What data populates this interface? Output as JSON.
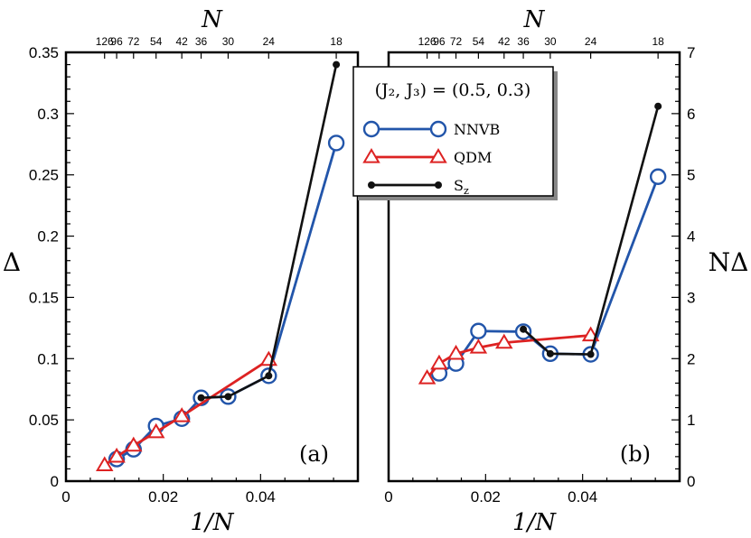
{
  "chart_data": [
    {
      "type": "line",
      "panel_label": "(a)",
      "xlabel": "1/N",
      "ylabel": "Δ",
      "top_xlabel": "N",
      "xlim": [
        0,
        0.06
      ],
      "ylim": [
        0,
        0.35
      ],
      "x_ticks": [
        0,
        0.02,
        0.04
      ],
      "x_tick_labels": [
        "0",
        "0.02",
        "0.04"
      ],
      "y_ticks": [
        0,
        0.05,
        0.1,
        0.15,
        0.2,
        0.25,
        0.3,
        0.35
      ],
      "y_tick_labels": [
        "0",
        "0.05",
        "0.1",
        "0.15",
        "0.2",
        "0.25",
        "0.3",
        "0.35"
      ],
      "top_ticks": [
        126,
        96,
        72,
        54,
        42,
        36,
        30,
        24,
        18
      ],
      "top_tick_labels": [
        "126",
        "96",
        "72",
        "54",
        "42",
        "36",
        "30",
        "24",
        "18"
      ],
      "series": [
        {
          "name": "NNVB",
          "color": "#2255aa",
          "marker": "circle",
          "x": [
            0.01042,
            0.01389,
            0.01852,
            0.02381,
            0.02778,
            0.03333,
            0.04167,
            0.05556
          ],
          "y": [
            0.018,
            0.026,
            0.045,
            0.051,
            0.068,
            0.069,
            0.086,
            0.276
          ]
        },
        {
          "name": "QDM",
          "color": "#dd2222",
          "marker": "triangle",
          "x": [
            0.00794,
            0.01042,
            0.01389,
            0.01852,
            0.02381,
            0.04167
          ],
          "y": [
            0.013,
            0.02,
            0.029,
            0.04,
            0.053,
            0.099
          ]
        },
        {
          "name": "S_z",
          "color": "#111111",
          "marker": "dot",
          "x": [
            0.02778,
            0.03333,
            0.04167,
            0.05556
          ],
          "y": [
            0.068,
            0.069,
            0.086,
            0.34
          ]
        }
      ]
    },
    {
      "type": "line",
      "panel_label": "(b)",
      "xlabel": "1/N",
      "ylabel": "NΔ",
      "top_xlabel": "N",
      "xlim": [
        0,
        0.06
      ],
      "ylim": [
        0,
        7
      ],
      "x_ticks": [
        0,
        0.02,
        0.04
      ],
      "x_tick_labels": [
        "0",
        "0.02",
        "0.04"
      ],
      "y_ticks": [
        0,
        1,
        2,
        3,
        4,
        5,
        6,
        7
      ],
      "y_tick_labels": [
        "0",
        "1",
        "2",
        "3",
        "4",
        "5",
        "6",
        "7"
      ],
      "top_ticks": [
        126,
        96,
        72,
        54,
        42,
        36,
        30,
        24,
        18
      ],
      "top_tick_labels": [
        "126",
        "96",
        "72",
        "54",
        "42",
        "36",
        "30",
        "24",
        "18"
      ],
      "series": [
        {
          "name": "NNVB",
          "color": "#2255aa",
          "marker": "circle",
          "x": [
            0.01042,
            0.01389,
            0.01852,
            0.02778,
            0.03333,
            0.04167,
            0.05556
          ],
          "y": [
            1.76,
            1.92,
            2.45,
            2.44,
            2.08,
            2.07,
            4.97
          ]
        },
        {
          "name": "QDM",
          "color": "#dd2222",
          "marker": "triangle",
          "x": [
            0.00794,
            0.01042,
            0.01389,
            0.01852,
            0.02381,
            0.04167
          ],
          "y": [
            1.68,
            1.92,
            2.08,
            2.18,
            2.26,
            2.38
          ]
        },
        {
          "name": "S_z",
          "color": "#111111",
          "marker": "dot",
          "x": [
            0.02778,
            0.03333,
            0.04167,
            0.05556
          ],
          "y": [
            2.48,
            2.08,
            2.07,
            6.12
          ]
        }
      ]
    }
  ],
  "legend": {
    "title": "(J₂, J₃) = (0.5, 0.3)",
    "entries": [
      {
        "label": "NNVB",
        "color": "#2255aa",
        "marker": "circle"
      },
      {
        "label": "QDM",
        "color": "#dd2222",
        "marker": "triangle"
      },
      {
        "label": "S_z",
        "color": "#111111",
        "marker": "dot"
      }
    ]
  }
}
